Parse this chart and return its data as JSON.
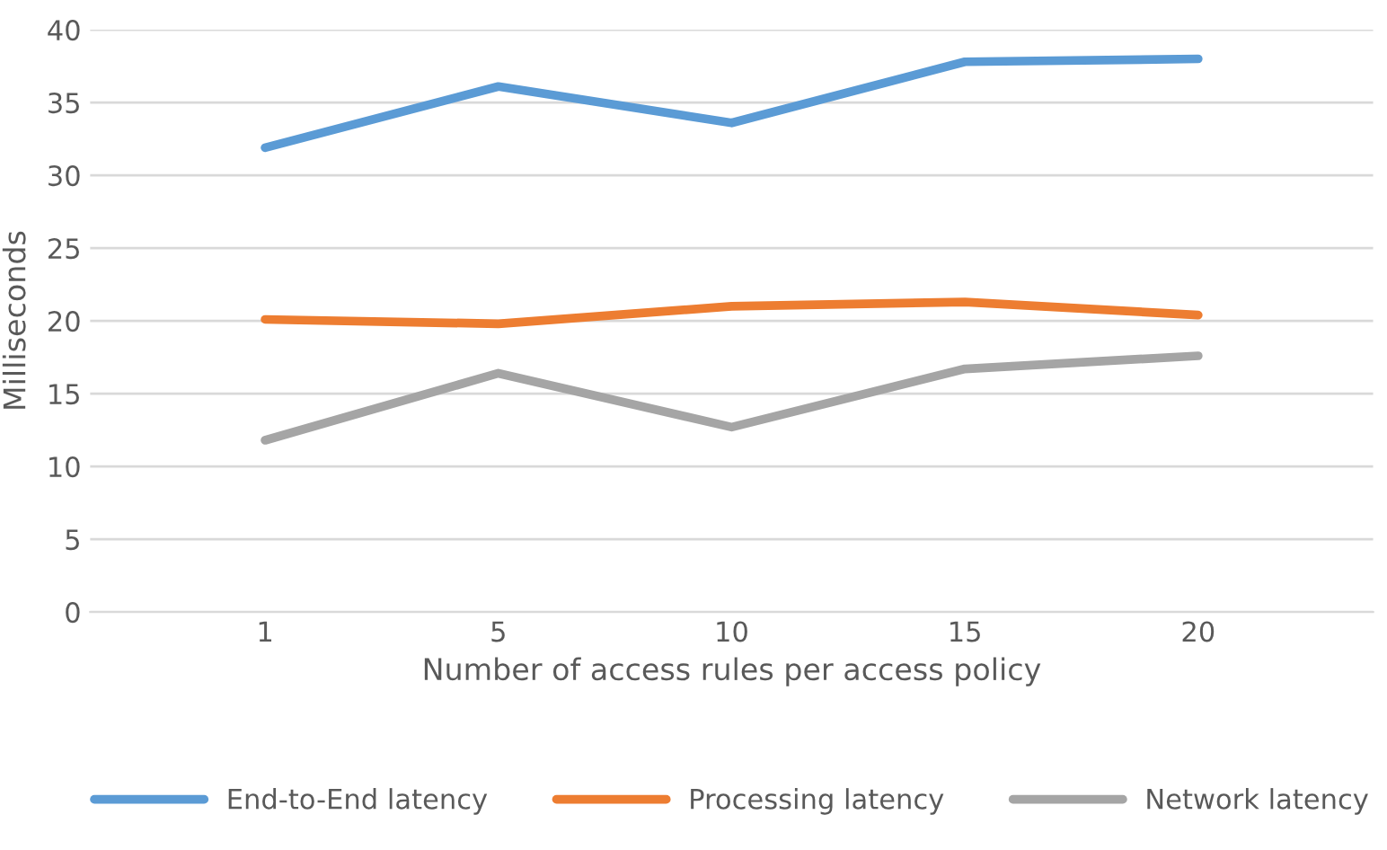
{
  "chart_data": {
    "type": "line",
    "xlabel": "Number of access rules per access policy",
    "ylabel": "Milliseconds",
    "categories": [
      "1",
      "5",
      "10",
      "15",
      "20"
    ],
    "series": [
      {
        "name": "End-to-End latency",
        "color": "#5b9bd5",
        "values": [
          31.9,
          36.1,
          33.6,
          37.8,
          38.0
        ]
      },
      {
        "name": "Processing latency",
        "color": "#ed7d31",
        "values": [
          20.1,
          19.8,
          21.0,
          21.3,
          20.4
        ]
      },
      {
        "name": "Network latency",
        "color": "#a5a5a5",
        "values": [
          11.8,
          16.4,
          12.7,
          16.7,
          17.6
        ]
      }
    ],
    "ylim": [
      0,
      40
    ],
    "yticks": [
      0,
      5,
      10,
      15,
      20,
      25,
      30,
      35,
      40
    ],
    "grid": "y",
    "legend": "bottom",
    "marker": "none",
    "line_style": "solid"
  }
}
